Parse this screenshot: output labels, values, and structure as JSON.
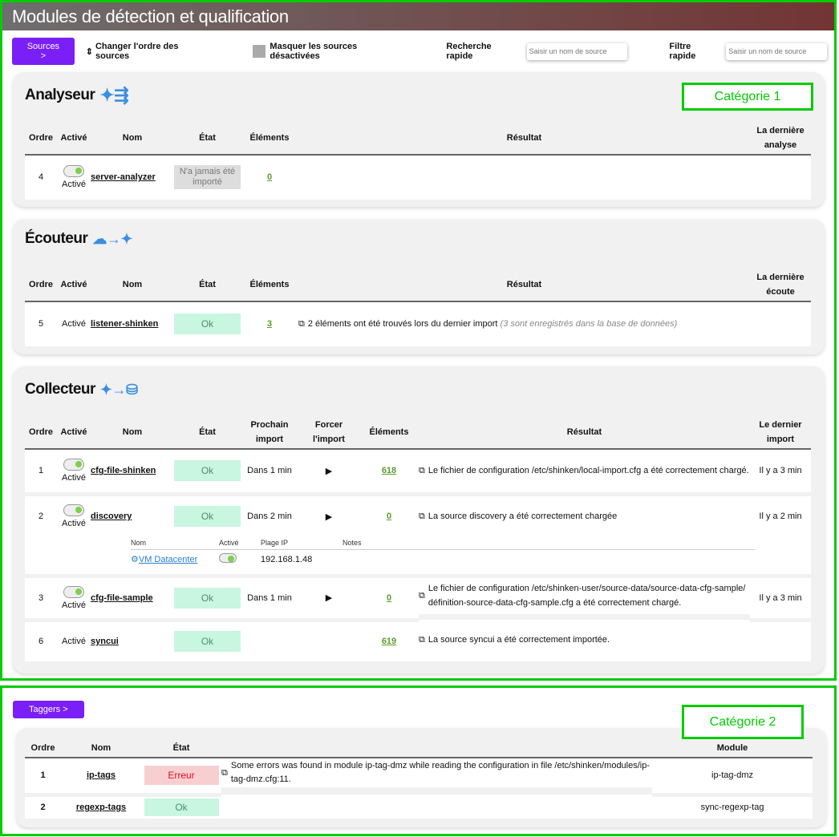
{
  "title": "Modules de détection et qualification",
  "toolbar": {
    "sources_button": "Sources >",
    "reorder": "Changer l'ordre des sources",
    "hide_disabled": "Masquer les sources désactivées",
    "quick_search_label": "Recherche rapide",
    "quick_search_placeholder": "Saisir un nom de source",
    "quick_filter_label": "Filtre rapide",
    "quick_filter_placeholder": "Saisir un nom de source"
  },
  "annotations": {
    "cat1": "Catégorie 1",
    "cat2": "Catégorie 2"
  },
  "analyseur": {
    "title": "Analyseur",
    "headers": [
      "Ordre",
      "Activé",
      "Nom",
      "État",
      "Éléments",
      "Résultat",
      "La dernière analyse"
    ],
    "rows": [
      {
        "order": "4",
        "active": "Activé",
        "name": "server-analyzer",
        "state": "N'a jamais été importé",
        "elements": "0",
        "result": "",
        "last": ""
      }
    ]
  },
  "ecouteur": {
    "title": "Écouteur",
    "headers": [
      "Ordre",
      "Activé",
      "Nom",
      "État",
      "Éléments",
      "Résultat",
      "La dernière écoute"
    ],
    "rows": [
      {
        "order": "5",
        "active": "Activé",
        "name": "listener-shinken",
        "state": "Ok",
        "elements": "3",
        "result": "2 éléments ont été trouvés lors du dernier import",
        "result_note": "(3 sont enregistrés dans la base de données)",
        "last": ""
      }
    ]
  },
  "collecteur": {
    "title": "Collecteur",
    "headers": [
      "Ordre",
      "Activé",
      "Nom",
      "État",
      "Prochain import",
      "Forcer l'import",
      "Éléments",
      "Résultat",
      "Le dernier import"
    ],
    "rows": [
      {
        "order": "1",
        "active": "Activé",
        "name": "cfg-file-shinken",
        "state": "Ok",
        "next": "Dans 1 min",
        "elements": "618",
        "result": "Le fichier de configuration /etc/shinken/local-import.cfg a été correctement chargé.",
        "last": "Il y a 3 min"
      },
      {
        "order": "2",
        "active": "Activé",
        "name": "discovery",
        "state": "Ok",
        "next": "Dans 2 min",
        "elements": "0",
        "result": "La source discovery a été correctement chargée",
        "last": "Il y a 2 min"
      },
      {
        "order": "3",
        "active": "Activé",
        "name": "cfg-file-sample",
        "state": "Ok",
        "next": "Dans 1 min",
        "elements": "0",
        "result": "Le fichier de configuration /etc/shinken-user/source-data/source-data-cfg-sample/définition-source-data-cfg-sample.cfg a été correctement chargé.",
        "last": "Il y a 3 min"
      },
      {
        "order": "6",
        "active": "Activé",
        "name": "syncui",
        "state": "Ok",
        "next": "",
        "elements": "619",
        "result": "La source syncui a été correctement importée.",
        "last": ""
      }
    ],
    "discovery_sub": {
      "headers": [
        "Nom",
        "Activé",
        "Plage IP",
        "Notes"
      ],
      "rows": [
        {
          "name": "VM Datacenter",
          "ip": "192.168.1.48",
          "notes": ""
        }
      ]
    }
  },
  "taggers": {
    "button": "Taggers >",
    "headers": [
      "Ordre",
      "Nom",
      "État",
      "",
      "Module"
    ],
    "rows": [
      {
        "order": "1",
        "name": "ip-tags",
        "state": "Erreur",
        "result": "Some errors was found in module ip-tag-dmz while reading the configuration in file /etc/shinken/modules/ip-tag-dmz.cfg:11.",
        "module": "ip-tag-dmz"
      },
      {
        "order": "2",
        "name": "regexp-tags",
        "state": "Ok",
        "result": "",
        "module": "sync-regexp-tag"
      }
    ]
  },
  "colors": {
    "accent": "#7a1ff5",
    "ok_bg": "#c9f6e0",
    "error_bg": "#f8cfd1",
    "annotation": "#00cc00"
  }
}
